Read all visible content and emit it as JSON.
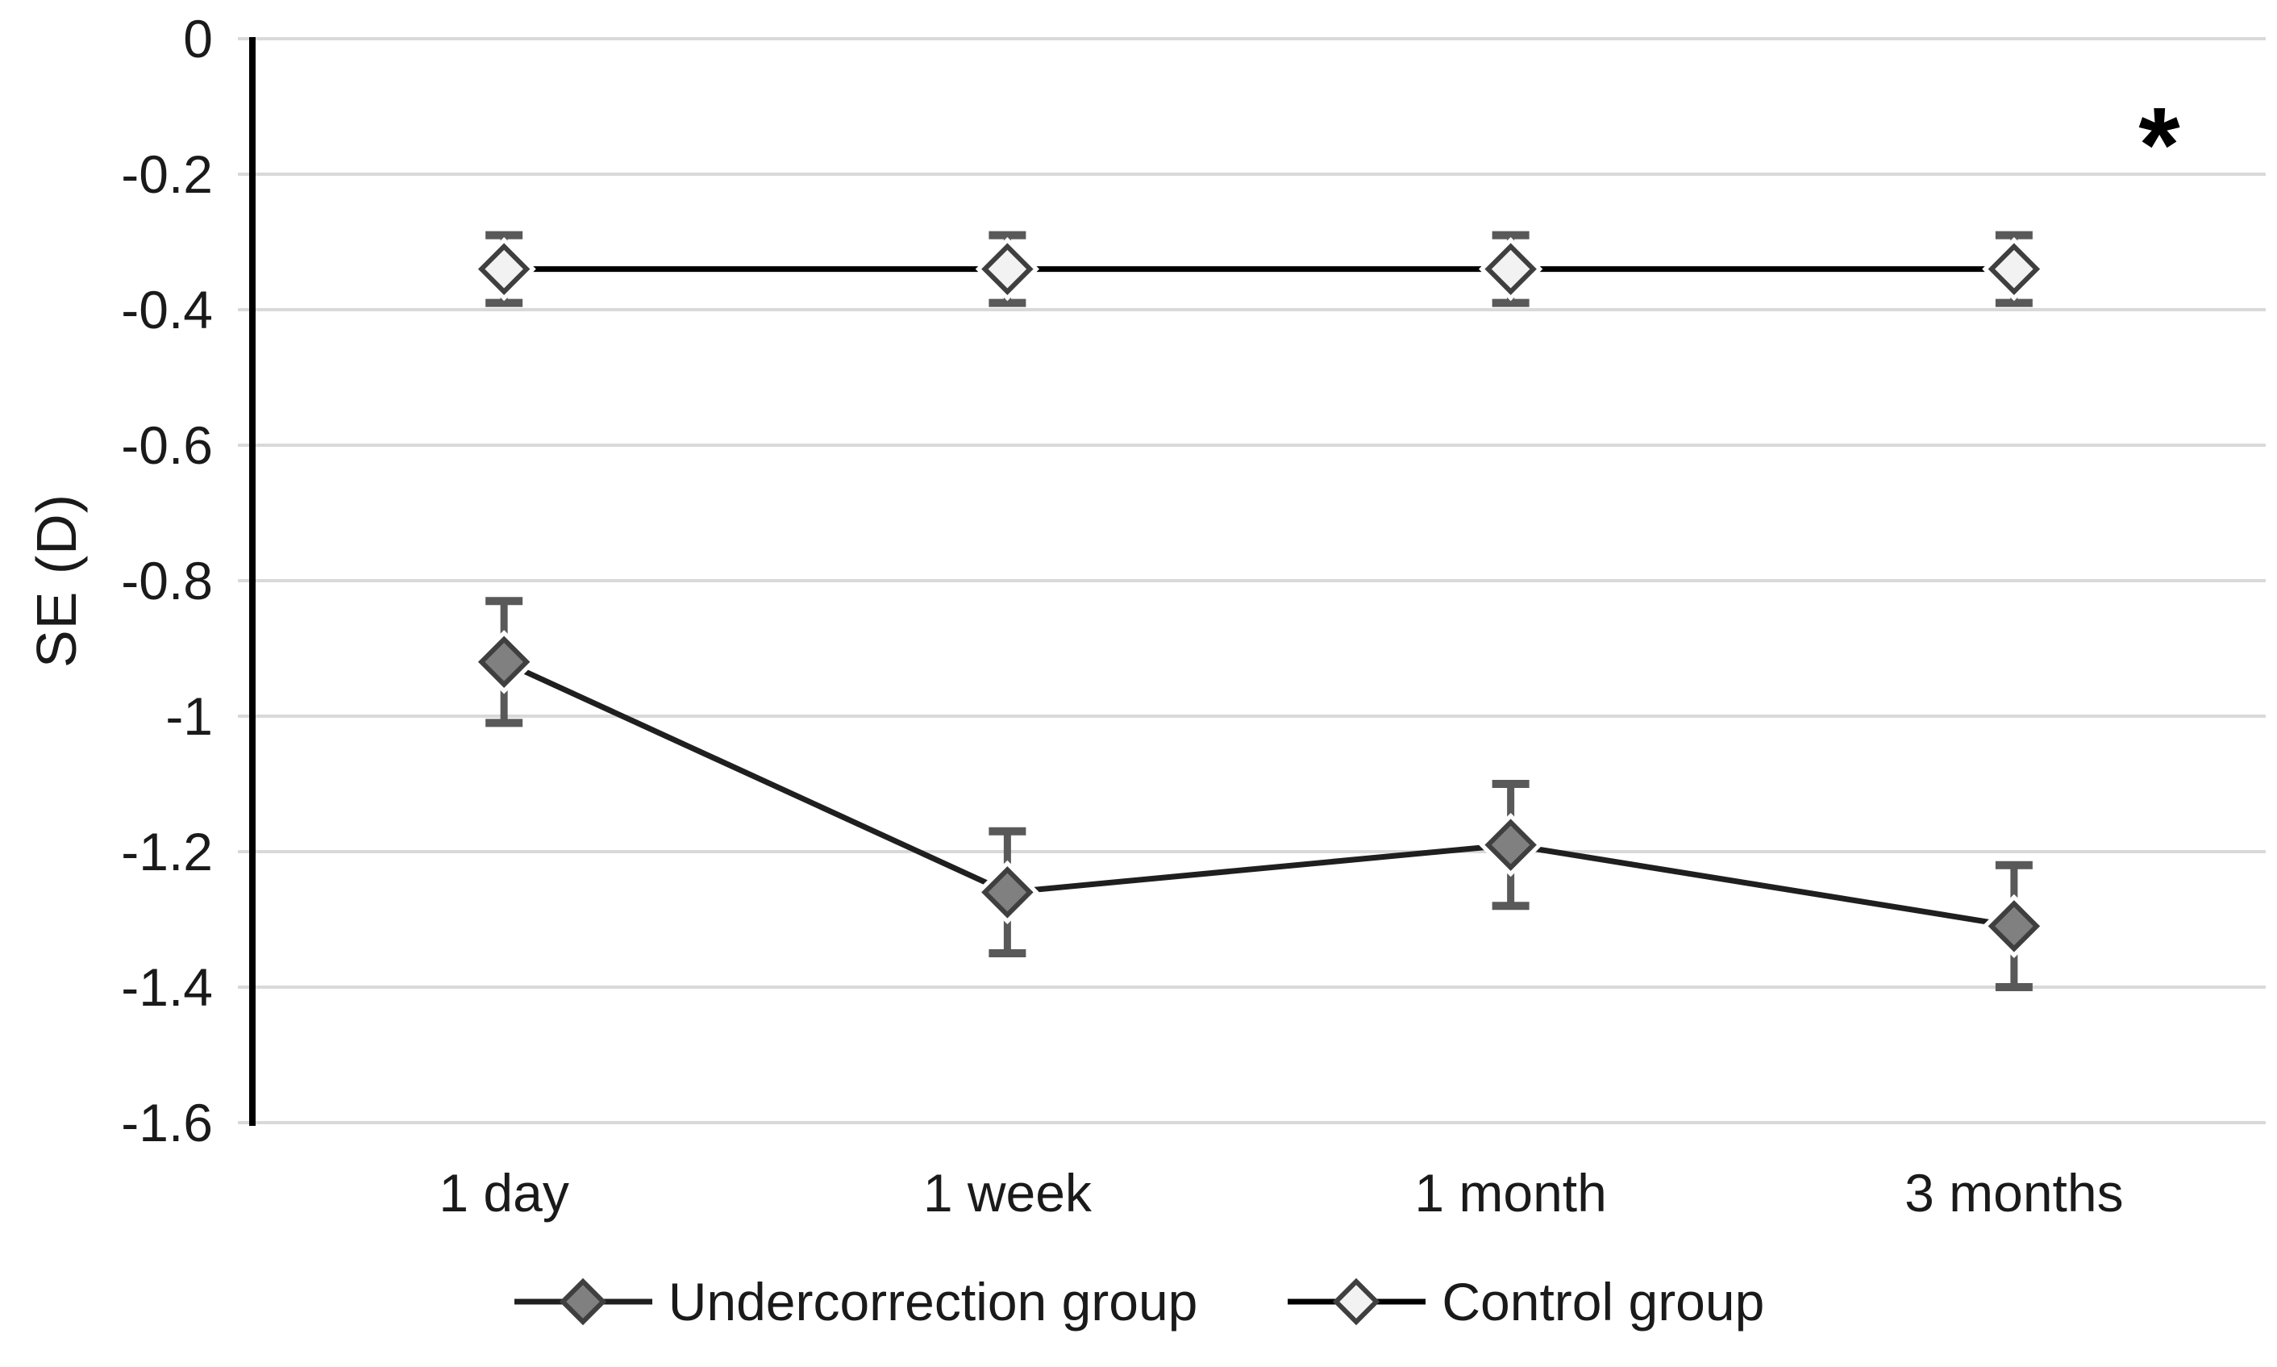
{
  "figure": {
    "background": "#ffffff",
    "description": "Line chart of spherical equivalent (SE) over follow-up visits with error bars"
  },
  "chart_data": {
    "type": "line",
    "title": "",
    "xlabel": "",
    "ylabel": "SE (D)",
    "categories": [
      "1 day",
      "1 week",
      "1 month",
      "3 months"
    ],
    "series": [
      {
        "name": "Undercorrection group",
        "values": [
          -0.92,
          -1.26,
          -1.19,
          -1.31
        ],
        "errors": [
          0.09,
          0.09,
          0.09,
          0.09
        ],
        "marker": "filled-diamond",
        "line_color": "#1f1f1f",
        "marker_fill": "#808080",
        "marker_stroke": "#3f3f3f"
      },
      {
        "name": "Control group",
        "values": [
          -0.34,
          -0.34,
          -0.34,
          -0.34
        ],
        "errors": [
          0.05,
          0.05,
          0.05,
          0.05
        ],
        "marker": "open-diamond",
        "line_color": "#000000",
        "marker_fill": "#f2f2f2",
        "marker_stroke": "#3f3f3f"
      }
    ],
    "ylim": [
      -1.6,
      0
    ],
    "ytick_labels": [
      "0",
      "-0.2",
      "-0.4",
      "-0.6",
      "-0.8",
      "-1",
      "-1.2",
      "-1.4",
      "-1.6"
    ],
    "grid": "horizontal",
    "gridline_color": "#d9d9d9",
    "axis_color": "#000000",
    "error_bar_color": "#595959",
    "text_color": "#1a1a1a",
    "legend_position": "bottom",
    "annotation": {
      "text": "*",
      "position": "top-right"
    }
  }
}
